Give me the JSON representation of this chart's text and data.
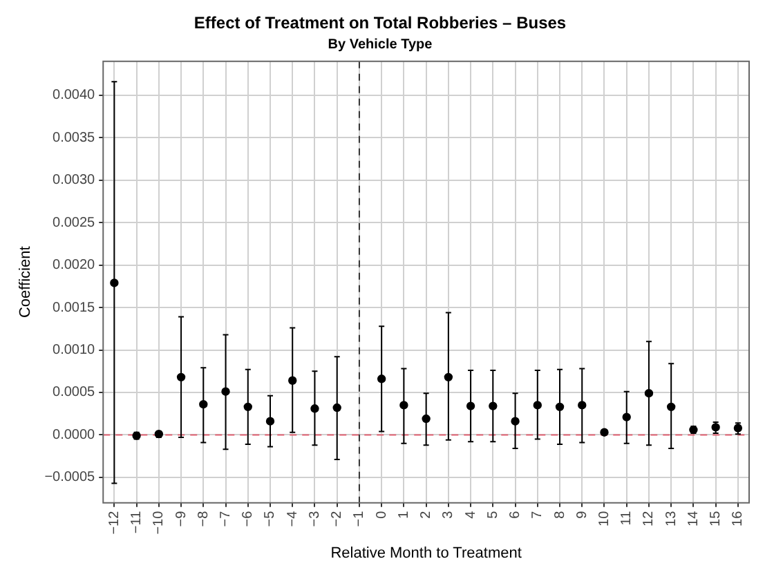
{
  "chart_data": {
    "type": "scatter",
    "title": "Effect of Treatment on Total Robberies – Buses",
    "subtitle": "By Vehicle Type",
    "xlabel": "Relative Month to Treatment",
    "ylabel": "Coefficient",
    "categories": [
      "−12",
      "−11",
      "−10",
      "−9",
      "−8",
      "−7",
      "−6",
      "−5",
      "−4",
      "−3",
      "−2",
      "−1",
      "0",
      "1",
      "2",
      "3",
      "4",
      "5",
      "6",
      "7",
      "8",
      "9",
      "10",
      "11",
      "12",
      "13",
      "14",
      "15",
      "16"
    ],
    "series": [
      {
        "color": "#000000",
        "values": [
          0.00179,
          -1e-05,
          1e-05,
          0.00068,
          0.00036,
          0.00051,
          0.00033,
          0.00016,
          0.00064,
          0.00031,
          0.00032,
          null,
          0.00066,
          0.00035,
          0.00019,
          0.00068,
          0.00034,
          0.00034,
          0.00016,
          0.00035,
          0.00033,
          0.00035,
          3e-05,
          0.00021,
          0.00049,
          0.00033,
          6e-05,
          9e-05,
          8e-05
        ],
        "errors": [
          [
            -0.00057,
            0.00416
          ],
          [
            -5e-05,
            3e-05
          ],
          [
            -3e-05,
            4e-05
          ],
          [
            -3e-05,
            0.00139
          ],
          [
            -9e-05,
            0.00079
          ],
          [
            -0.00017,
            0.00118
          ],
          [
            -0.00011,
            0.00077
          ],
          [
            -0.00014,
            0.00046
          ],
          [
            3e-05,
            0.00126
          ],
          [
            -0.00012,
            0.00075
          ],
          [
            -0.00029,
            0.00092
          ],
          null,
          [
            4e-05,
            0.00128
          ],
          [
            -0.0001,
            0.00078
          ],
          [
            -0.00012,
            0.00049
          ],
          [
            -6e-05,
            0.00144
          ],
          [
            -8e-05,
            0.00076
          ],
          [
            -8e-05,
            0.00076
          ],
          [
            -0.00016,
            0.00049
          ],
          [
            -5e-05,
            0.00076
          ],
          [
            -0.00011,
            0.00077
          ],
          [
            -9e-05,
            0.00078
          ],
          null,
          [
            -0.0001,
            0.00051
          ],
          [
            -0.00012,
            0.0011
          ],
          [
            -0.00016,
            0.00084
          ],
          [
            2e-05,
            0.0001
          ],
          [
            2e-05,
            0.00015
          ],
          [
            1e-05,
            0.00014
          ]
        ]
      }
    ],
    "ylim": [
      -0.0008,
      0.0044
    ],
    "yticks": [
      {
        "value": -0.0005,
        "label": "−0.0005"
      },
      {
        "value": 0,
        "label": "0.0000"
      },
      {
        "value": 0.0005,
        "label": "0.0005"
      },
      {
        "value": 0.001,
        "label": "0.0010"
      },
      {
        "value": 0.0015,
        "label": "0.0015"
      },
      {
        "value": 0.002,
        "label": "0.0020"
      },
      {
        "value": 0.0025,
        "label": "0.0025"
      },
      {
        "value": 0.003,
        "label": "0.0030"
      },
      {
        "value": 0.0035,
        "label": "0.0035"
      },
      {
        "value": 0.004,
        "label": "0.0040"
      }
    ],
    "ref_lines": [
      {
        "axis": "y",
        "value": 0,
        "color": "#e06070",
        "line_style": "dashed"
      },
      {
        "axis": "x",
        "value": "−1",
        "color": "#333333",
        "line_style": "dashed"
      }
    ],
    "grid": true,
    "marker": "circle",
    "legend": false
  }
}
